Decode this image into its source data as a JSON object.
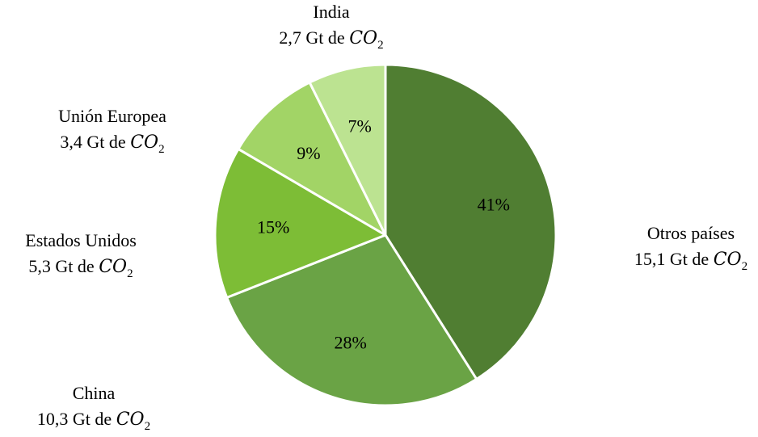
{
  "chart_data": {
    "type": "pie",
    "title": "",
    "start_angle_deg": 0,
    "direction": "clockwise",
    "slices": [
      {
        "label": "Otros países",
        "amount": "15,1 Gt de",
        "unit_base": "CO",
        "unit_sub": "2",
        "percent_label": "41%",
        "value": 15.1,
        "color": "#507e32"
      },
      {
        "label": "China",
        "amount": "10,3 Gt de",
        "unit_base": "CO",
        "unit_sub": "2",
        "percent_label": "28%",
        "value": 10.3,
        "color": "#6aa345"
      },
      {
        "label": "Estados Unidos",
        "amount": "5,3 Gt de",
        "unit_base": "CO",
        "unit_sub": "2",
        "percent_label": "15%",
        "value": 5.3,
        "color": "#7dbd36"
      },
      {
        "label": "Unión Europea",
        "amount": "3,4 Gt de",
        "unit_base": "CO",
        "unit_sub": "2",
        "percent_label": "9%",
        "value": 3.4,
        "color": "#a2d466"
      },
      {
        "label": "India",
        "amount": "2,7 Gt de",
        "unit_base": "CO",
        "unit_sub": "2",
        "percent_label": "7%",
        "value": 2.7,
        "color": "#bce391"
      }
    ]
  }
}
